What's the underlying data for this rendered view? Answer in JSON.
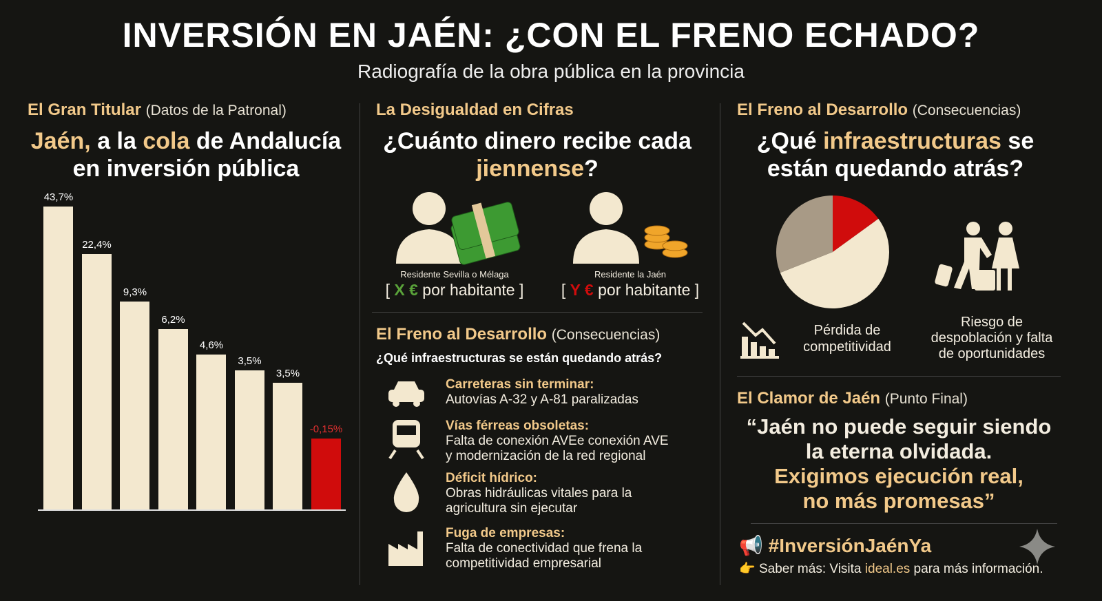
{
  "title": "INVERSIÓN EN JAÉN: ¿CON EL FRENO ECHADO?",
  "subtitle": "Radiografía de la obra pública en la provincia",
  "left": {
    "section": "El Gran Titular",
    "section_note": "(Datos de la Patronal)",
    "head_gold1": "Jaén,",
    "head_1": " a la ",
    "head_gold2": "cola",
    "head_2": " de Andalucía",
    "head_3": "en inversión pública"
  },
  "chart_data": [
    {
      "type": "bar",
      "categories": [
        "",
        "",
        "",
        "",
        "",
        "",
        "",
        ""
      ],
      "values": [
        43.7,
        22.4,
        9.3,
        6.2,
        4.6,
        3.5,
        3.5,
        -0.15
      ],
      "labels": [
        "43,7%",
        "22,4%",
        "9,3%",
        "6,2%",
        "4,6%",
        "3,5%",
        "3,5%",
        "-0,15%"
      ],
      "colors": [
        "#f3e8cf",
        "#f3e8cf",
        "#f3e8cf",
        "#f3e8cf",
        "#f3e8cf",
        "#f3e8cf",
        "#f3e8cf",
        "#d00c0c"
      ]
    },
    {
      "type": "pie",
      "values": [
        15,
        54,
        31
      ],
      "colors": [
        "#d00c0c",
        "#f3e8cf",
        "#a89a86"
      ]
    }
  ],
  "middle": {
    "section": "La Desigualdad en Cifras",
    "head_1": "¿Cuánto dinero recibe cada",
    "head_gold": "jiennense",
    "head_q": "?",
    "person1": {
      "label": "Residente Sevilla o Mélaga",
      "open": "[ ",
      "value": "X €",
      "text": " por habitante ]",
      "color": "#5aa33a"
    },
    "person2": {
      "label": "Residente la Jaén",
      "open": "[ ",
      "value": "Y €",
      "text": " por habitante ]",
      "color": "#d00c0c"
    },
    "section2": "El Freno al Desarrollo",
    "section2_note": "(Consecuencias)",
    "question": "¿Qué infraestructuras se están quedando atrás?",
    "items": [
      {
        "icon": "car",
        "title": "Carreteras sin terminar:",
        "desc": [
          "Autovías A-32 y A-81 paralizadas"
        ]
      },
      {
        "icon": "train",
        "title": "Vías férreas obsoletas:",
        "desc": [
          "Falta de conexión AVEe conexión AVE",
          "y modernización de la red regional"
        ]
      },
      {
        "icon": "water-drop",
        "title": "Déficit hídrico:",
        "desc": [
          "Obras hidráulicas vitales para la",
          "agricultura sin ejecutar"
        ]
      },
      {
        "icon": "factory",
        "title": "Fuga de empresas:",
        "desc": [
          "Falta de conectividad que frena la",
          "competitividad empresarial"
        ]
      }
    ]
  },
  "right": {
    "section": "El Freno al Desarrollo",
    "section_note": "(Consecuencias)",
    "head_1": "¿Qué ",
    "head_gold": "infraestructuras",
    "head_2": " se",
    "head_3": "están quedando atrás?",
    "cap1": [
      "Pérdida de",
      "competitividad"
    ],
    "cap2": [
      "Riesgo de",
      "despoblación y falta",
      "de oportunidades"
    ],
    "section2": "El Clamor de Jaén",
    "section2_note": "(Punto Final)",
    "quote_1": "“Jaén no puede seguir siendo",
    "quote_2": "la eterna olvidada.",
    "quote_3": "Exigimos ejecución real,",
    "quote_4": "no más promesas”",
    "hashtag": "#InversiónJaénYa",
    "more_1": "Saber más: Visita ",
    "more_link": "ideal.es",
    "more_2": " para más información."
  }
}
